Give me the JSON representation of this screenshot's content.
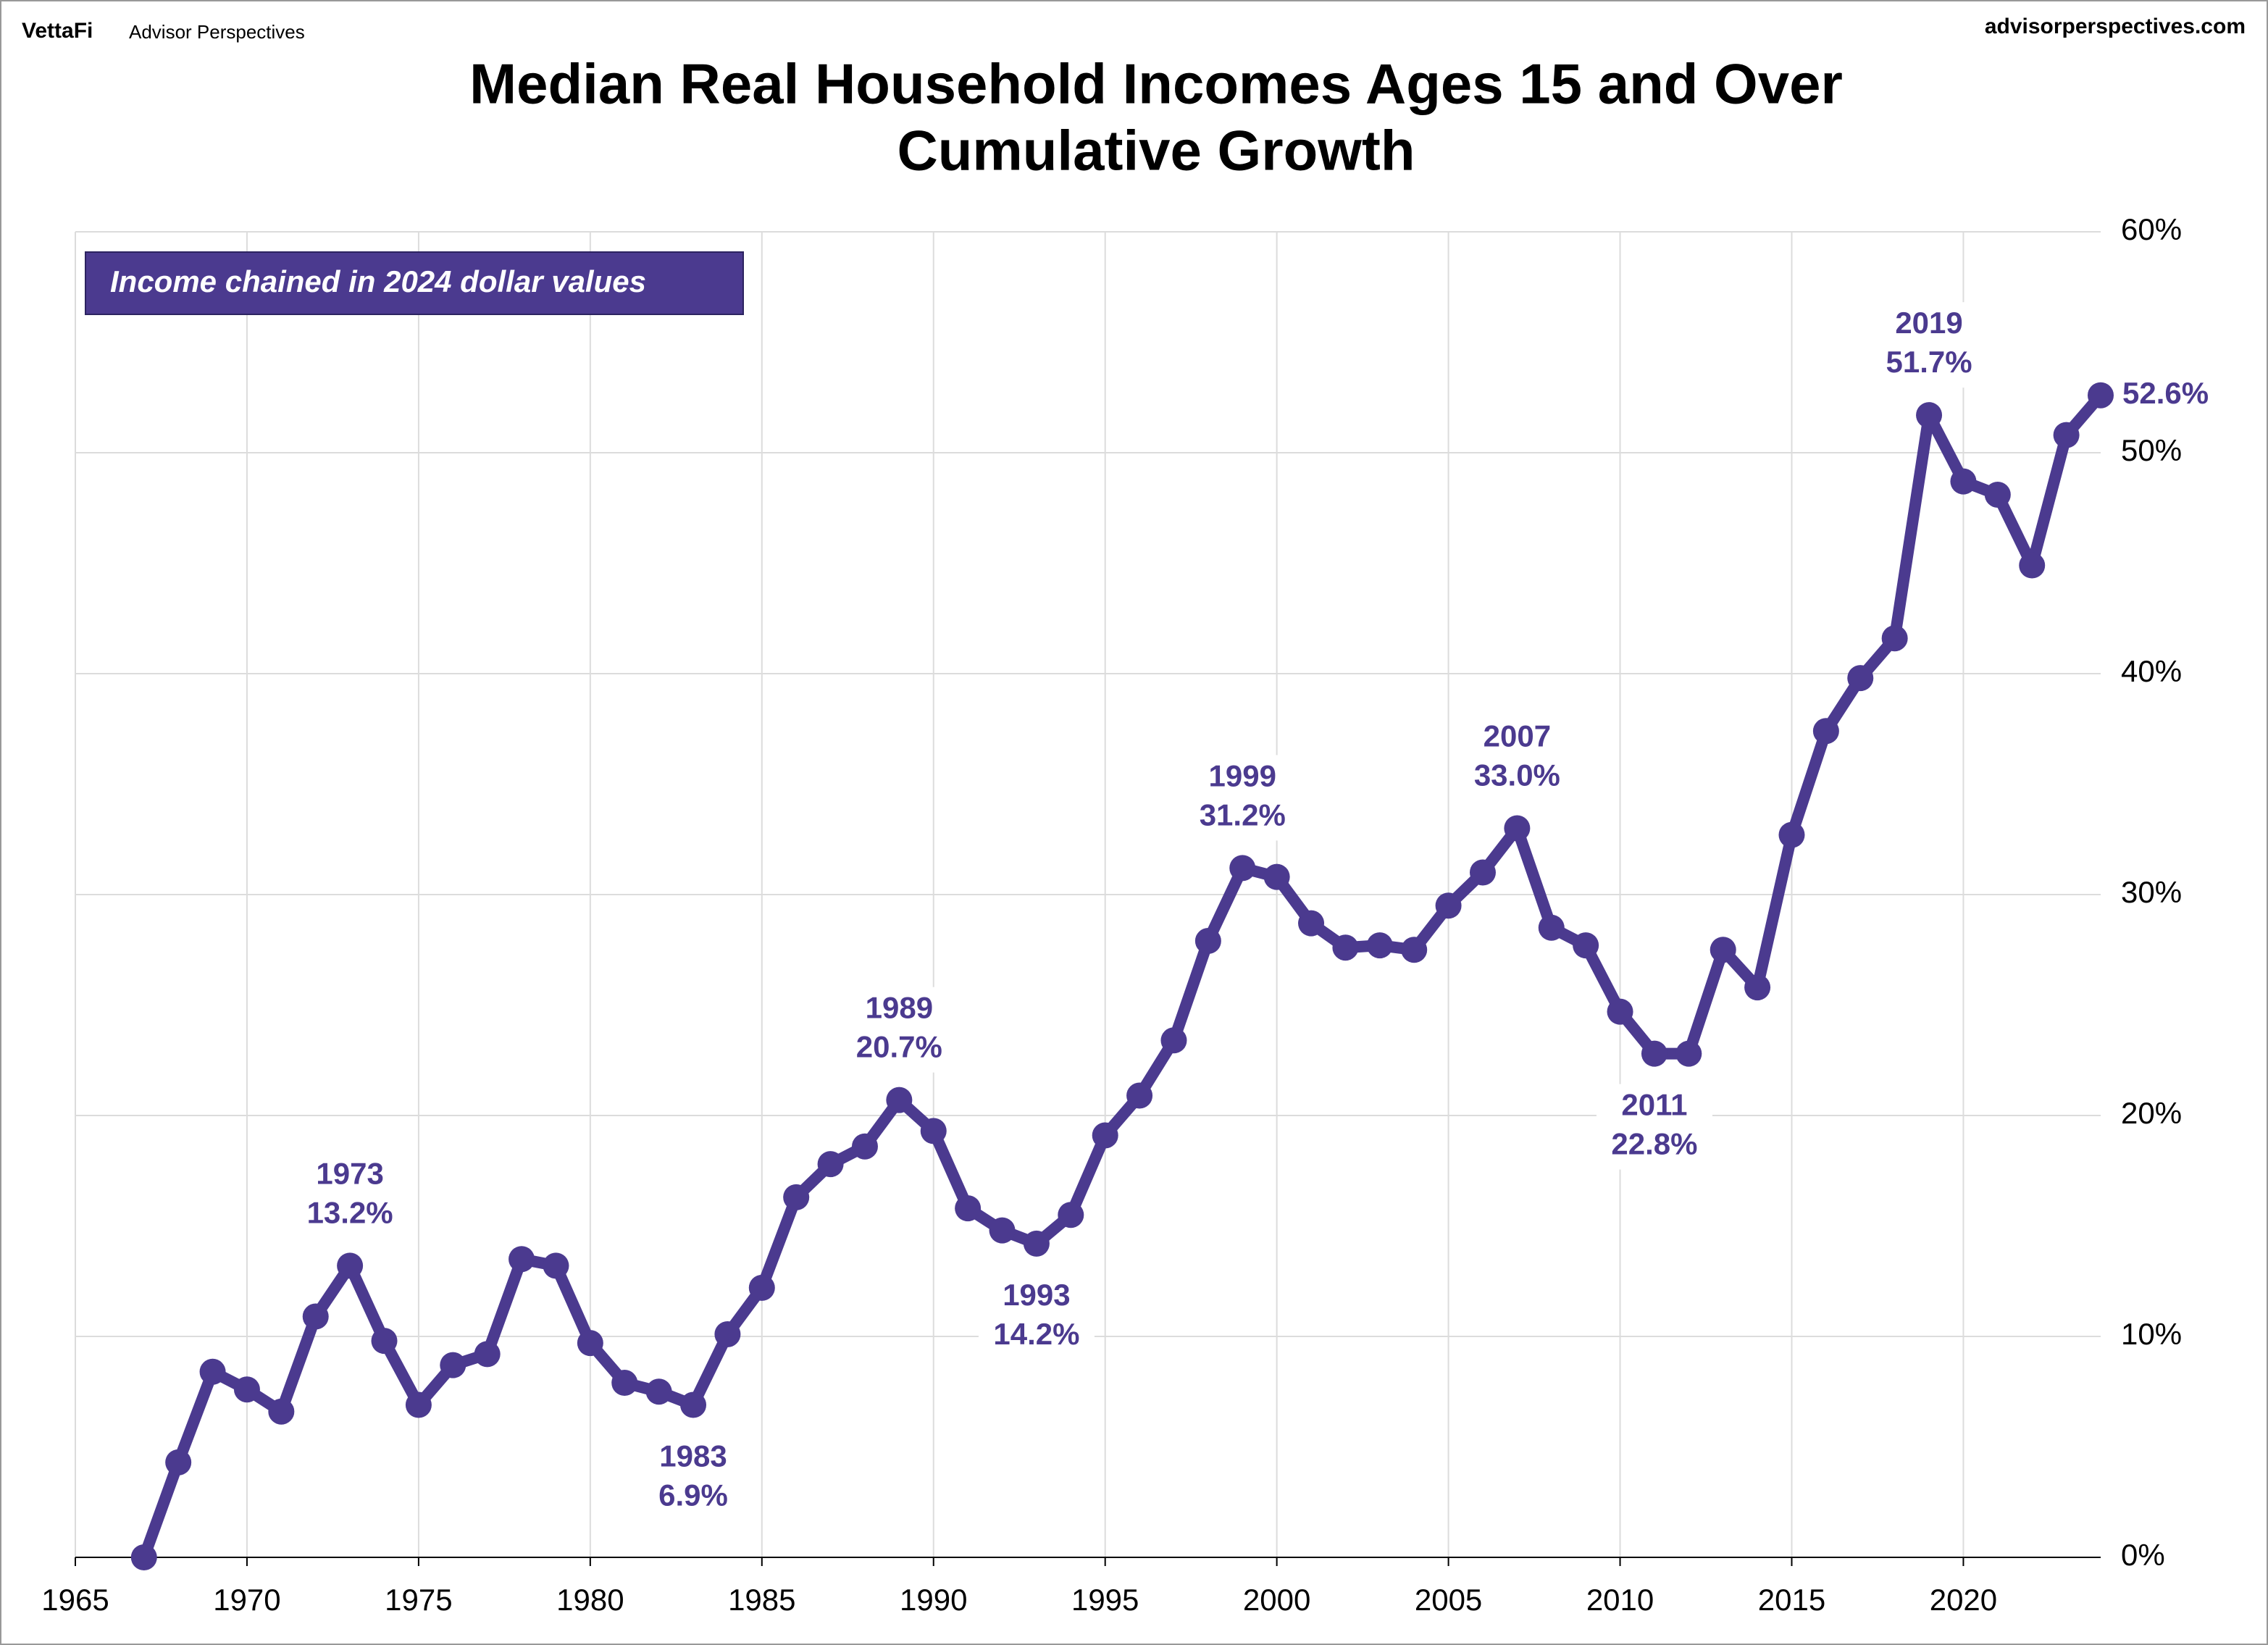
{
  "header": {
    "brand": "VettaFi",
    "brand_sub": "Advisor Perspectives",
    "site": "advisorperspectives.com"
  },
  "chart_data": {
    "type": "line",
    "title": "Median Real Household Incomes Ages 15 and Over",
    "subtitle": "Cumulative Growth",
    "note": "Income chained in 2024 dollar values",
    "x": [
      1967,
      1968,
      1969,
      1970,
      1971,
      1972,
      1973,
      1974,
      1975,
      1976,
      1977,
      1978,
      1979,
      1980,
      1981,
      1982,
      1983,
      1984,
      1985,
      1986,
      1987,
      1988,
      1989,
      1990,
      1991,
      1992,
      1993,
      1994,
      1995,
      1996,
      1997,
      1998,
      1999,
      2000,
      2001,
      2002,
      2003,
      2004,
      2005,
      2006,
      2007,
      2008,
      2009,
      2010,
      2011,
      2012,
      2013,
      2014,
      2015,
      2016,
      2017,
      2018,
      2019,
      2020,
      2021,
      2022,
      2023,
      2024
    ],
    "series": [
      {
        "name": "Cumulative Growth",
        "color": "#4b3a8f",
        "values": [
          0,
          4.3,
          8.4,
          7.6,
          6.6,
          10.9,
          13.2,
          9.8,
          6.9,
          8.7,
          9.2,
          13.5,
          13.2,
          9.7,
          7.9,
          7.5,
          6.9,
          10.1,
          12.2,
          16.3,
          17.8,
          18.6,
          20.7,
          19.3,
          15.8,
          14.8,
          14.2,
          15.5,
          19.1,
          20.9,
          23.4,
          27.9,
          31.2,
          30.8,
          28.7,
          27.6,
          27.7,
          27.5,
          29.5,
          31.0,
          33.0,
          28.5,
          27.7,
          24.7,
          22.8,
          22.8,
          27.5,
          25.8,
          32.7,
          37.4,
          39.8,
          41.6,
          51.7,
          48.7,
          48.1,
          44.9,
          50.8,
          52.6
        ]
      }
    ],
    "annotations": [
      {
        "x": 1973,
        "label": "1973",
        "value_label": "13.2%"
      },
      {
        "x": 1983,
        "label": "1983",
        "value_label": "6.9%"
      },
      {
        "x": 1989,
        "label": "1989",
        "value_label": "20.7%"
      },
      {
        "x": 1993,
        "label": "1993",
        "value_label": "14.2%"
      },
      {
        "x": 1999,
        "label": "1999",
        "value_label": "31.2%"
      },
      {
        "x": 2007,
        "label": "2007",
        "value_label": "33.0%"
      },
      {
        "x": 2011,
        "label": "2011",
        "value_label": "22.8%"
      },
      {
        "x": 2019,
        "label": "2019",
        "value_label": "51.7%"
      }
    ],
    "end_label": "52.6%",
    "xlim": [
      1965,
      2024
    ],
    "xticks": [
      1965,
      1970,
      1975,
      1980,
      1985,
      1990,
      1995,
      2000,
      2005,
      2010,
      2015,
      2020
    ],
    "ylim": [
      0,
      60
    ],
    "yticks": [
      {
        "value": 0,
        "label": "0%"
      },
      {
        "value": 10,
        "label": "10%"
      },
      {
        "value": 20,
        "label": "20%"
      },
      {
        "value": 30,
        "label": "30%"
      },
      {
        "value": 40,
        "label": "40%"
      },
      {
        "value": 50,
        "label": "50%"
      },
      {
        "value": 60,
        "label": "60%"
      }
    ],
    "grid": true
  }
}
